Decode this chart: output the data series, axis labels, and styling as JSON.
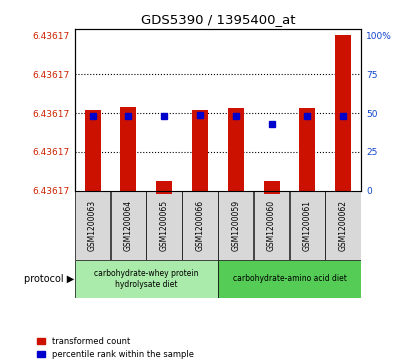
{
  "title": "GDS5390 / 1395400_at",
  "samples": [
    "GSM1200063",
    "GSM1200064",
    "GSM1200065",
    "GSM1200066",
    "GSM1200059",
    "GSM1200060",
    "GSM1200061",
    "GSM1200062"
  ],
  "red_bar_heights": [
    52,
    54,
    6,
    52,
    53,
    6,
    53,
    100
  ],
  "blue_dot_y": [
    48,
    48,
    48,
    49,
    48,
    43,
    48,
    48
  ],
  "right_yticks": [
    0,
    25,
    50,
    75,
    100
  ],
  "right_ytick_labels": [
    "0",
    "25",
    "50",
    "75",
    "100%"
  ],
  "left_ytick_positions": [
    0,
    25,
    50,
    75,
    100
  ],
  "left_ytick_labels": [
    "6.43617",
    "6.43617",
    "6.43617",
    "6.43617",
    "6.43617"
  ],
  "ylabel_left_color": "#cc2200",
  "ylabel_right_color": "#1144cc",
  "bar_color": "#cc1100",
  "dot_color": "#0000cc",
  "dotted_lines": [
    25,
    50,
    75
  ],
  "protocol_groups": [
    {
      "label": "carbohydrate-whey protein\nhydrolysate diet",
      "start": 0,
      "end": 4,
      "color": "#aaeaaa"
    },
    {
      "label": "carbohydrate-amino acid diet",
      "start": 4,
      "end": 8,
      "color": "#55cc55"
    }
  ],
  "legend_items": [
    {
      "label": "transformed count",
      "color": "#cc1100"
    },
    {
      "label": "percentile rank within the sample",
      "color": "#0000cc"
    }
  ],
  "protocol_label": "protocol ▶",
  "sample_box_color": "#d8d8d8",
  "plot_bg_color": "#ffffff",
  "fig_bg_color": "#ffffff",
  "bar_width": 0.45,
  "ylim": [
    0,
    104
  ]
}
